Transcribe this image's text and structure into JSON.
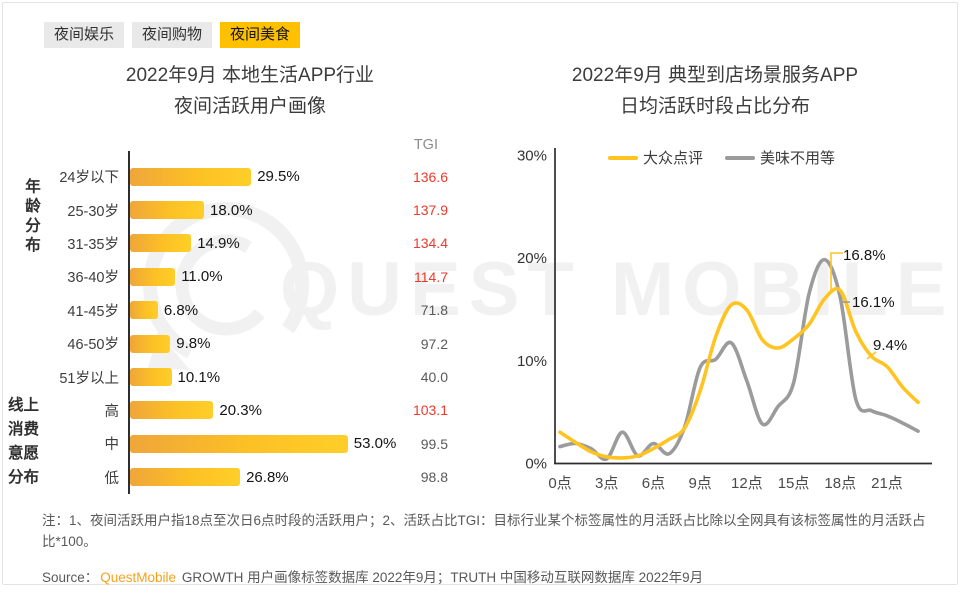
{
  "tabs": [
    {
      "label": "夜间娱乐",
      "active": false
    },
    {
      "label": "夜间购物",
      "active": false
    },
    {
      "label": "夜间美食",
      "active": true
    }
  ],
  "watermark": {
    "text": "QUEST MOBILE"
  },
  "left_chart": {
    "title_line1": "2022年9月 本地生活APP行业",
    "title_line2": "夜间活跃用户画像",
    "tgi_header": "TGI",
    "group_label_age": "年龄分布",
    "group_label_consume": "线上消费意愿分布"
  },
  "right_chart": {
    "title_line1": "2022年9月 典型到店场景服务APP",
    "title_line2": "日均活跃时段占比分布",
    "callouts": [
      {
        "text": "16.8%"
      },
      {
        "text": "16.1%"
      },
      {
        "text": "9.4%"
      }
    ]
  },
  "chart_data": [
    {
      "type": "bar",
      "orientation": "horizontal",
      "title": "2022年9月 本地生活APP行业 夜间活跃用户画像",
      "group_labels": [
        "年龄分布",
        "线上消费意愿分布"
      ],
      "categories": [
        "24岁以下",
        "25-30岁",
        "31-35岁",
        "36-40岁",
        "41-45岁",
        "46-50岁",
        "51岁以上",
        "高",
        "中",
        "低"
      ],
      "values": [
        29.5,
        18.0,
        14.9,
        11.0,
        6.8,
        9.8,
        10.1,
        20.3,
        53.0,
        26.8
      ],
      "value_labels": [
        "29.5%",
        "18.0%",
        "14.9%",
        "11.0%",
        "6.8%",
        "9.8%",
        "10.1%",
        "20.3%",
        "53.0%",
        "26.8%"
      ],
      "tgi_header": "TGI",
      "tgi": [
        136.6,
        137.9,
        134.4,
        114.7,
        71.8,
        97.2,
        40.0,
        103.1,
        99.5,
        98.8
      ],
      "tgi_highlight": [
        true,
        true,
        true,
        true,
        false,
        false,
        false,
        true,
        false,
        false
      ],
      "bar_color": "#FFC125",
      "tgi_red_color": "#EC3A2D",
      "unit": "%"
    },
    {
      "type": "line",
      "title": "2022年9月 典型到店场景服务APP 日均活跃时段占比分布",
      "x_hours": [
        0,
        1,
        2,
        3,
        4,
        5,
        6,
        7,
        8,
        9,
        10,
        11,
        12,
        13,
        14,
        15,
        16,
        17,
        18,
        19,
        20,
        21,
        22,
        23
      ],
      "x_tick_labels": [
        "0点",
        "3点",
        "6点",
        "9点",
        "12点",
        "15点",
        "18点",
        "21点"
      ],
      "x_tick_hours": [
        0,
        3,
        6,
        9,
        12,
        15,
        18,
        21
      ],
      "y_tick_labels": [
        "30%",
        "20%",
        "10%",
        "0%"
      ],
      "y_tick_values": [
        30,
        20,
        10,
        0
      ],
      "ylim": [
        0,
        30
      ],
      "grid": false,
      "legend_position": "top",
      "series": [
        {
          "name": "大众点评",
          "color": "#FFC422",
          "values": [
            3.0,
            2.0,
            1.1,
            0.6,
            0.5,
            0.7,
            1.4,
            2.3,
            3.4,
            7.0,
            12.3,
            15.4,
            14.9,
            12.0,
            11.2,
            12.1,
            13.5,
            16.0,
            16.8,
            12.8,
            10.4,
            9.4,
            7.4,
            5.9
          ]
        },
        {
          "name": "美味不用等",
          "color": "#9B9B9B",
          "values": [
            1.6,
            1.9,
            1.4,
            0.4,
            3.0,
            0.7,
            1.9,
            0.9,
            3.5,
            9.3,
            10.1,
            11.7,
            8.0,
            3.8,
            5.5,
            7.8,
            16.5,
            19.8,
            16.1,
            6.2,
            5.1,
            4.6,
            3.9,
            3.1
          ]
        }
      ],
      "annotations": [
        {
          "text": "16.8%",
          "series": "大众点评",
          "hour": 18,
          "value": 16.8
        },
        {
          "text": "16.1%",
          "series": "美味不用等",
          "hour": 18,
          "value": 16.1
        },
        {
          "text": "9.4%",
          "series": "大众点评",
          "hour": 21,
          "value": 9.4
        }
      ]
    }
  ],
  "note": "注：1、夜间活跃用户指18点至次日6点时段的活跃用户；2、活跃占比TGI：目标行业某个标签属性的月活跃占比除以全网具有该标签属性的月活跃占比*100。",
  "source": {
    "prefix": "Source：",
    "brand": "QuestMobile",
    "rest": " GROWTH 用户画像标签数据库 2022年9月；TRUTH 中国移动互联网数据库 2022年9月"
  }
}
